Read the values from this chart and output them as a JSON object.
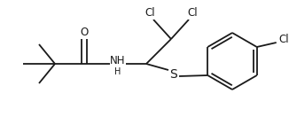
{
  "bg_color": "#ffffff",
  "line_color": "#1a1a1a",
  "text_color": "#1a1a1a",
  "font_size": 8.5,
  "line_width": 1.3,
  "figsize": [
    3.26,
    1.32
  ],
  "dpi": 100,
  "xlim": [
    0,
    326
  ],
  "ylim": [
    0,
    132
  ]
}
